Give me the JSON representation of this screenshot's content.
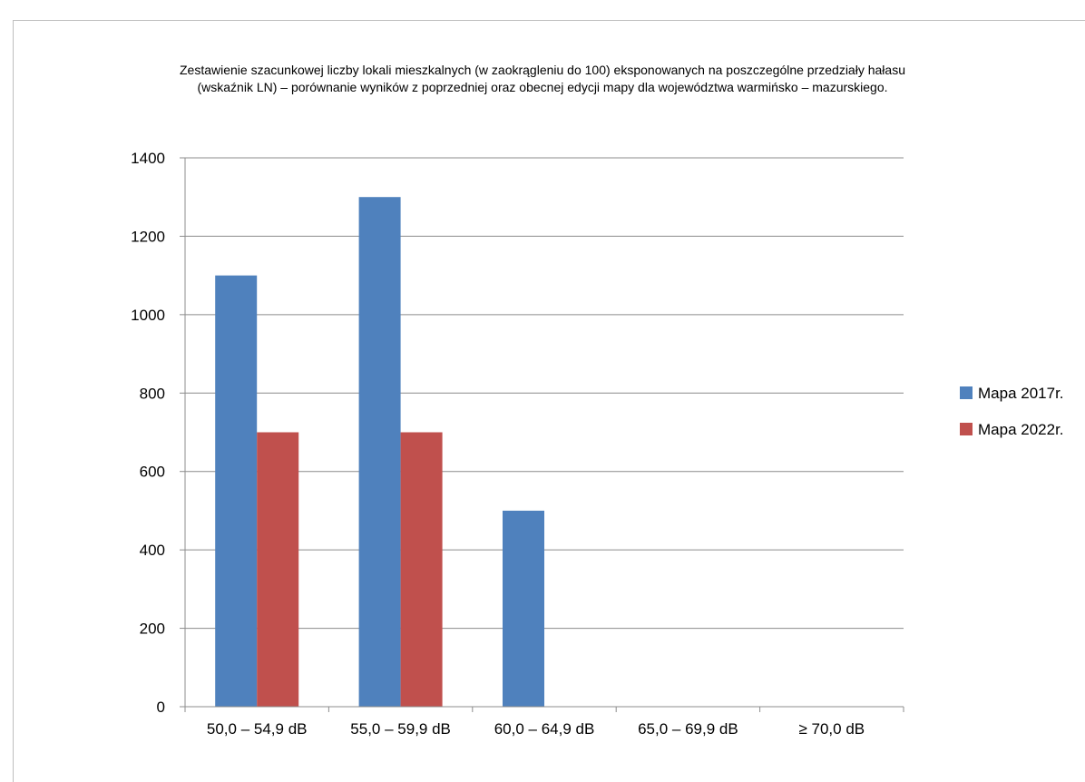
{
  "chart_data": {
    "type": "bar",
    "title": [
      "Zestawienie szacunkowej liczby lokali mieszkalnych  (w zaokrągleniu do 100) eksponowanych  na poszczególne przedziały hałasu",
      "(wskaźnik LN) – porównanie wyników  z poprzedniej  oraz obecnej edycji mapy dla województwa warmińsko – mazurskiego."
    ],
    "categories": [
      "50,0 – 54,9 dB",
      "55,0 – 59,9 dB",
      "60,0 – 64,9 dB",
      "65,0 – 69,9 dB",
      "≥ 70,0 dB"
    ],
    "series": [
      {
        "name": "Mapa 2017r.",
        "values": [
          1100,
          1300,
          500,
          0,
          0
        ],
        "color": "#4f81bd"
      },
      {
        "name": "Mapa 2022r.",
        "values": [
          700,
          700,
          0,
          0,
          0
        ],
        "color": "#c0504d"
      }
    ],
    "ylim": [
      0,
      1400
    ],
    "yticks": [
      0,
      200,
      400,
      600,
      800,
      1000,
      1200,
      1400
    ],
    "grid": true,
    "legend": "right"
  }
}
